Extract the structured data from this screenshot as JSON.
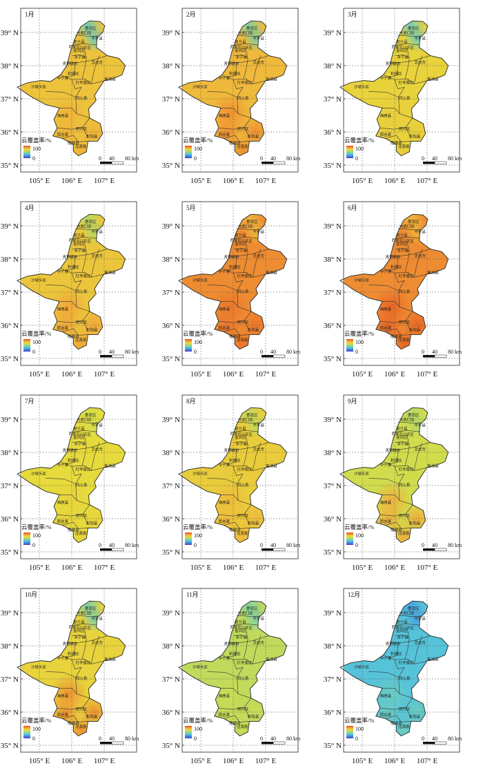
{
  "figure": {
    "legend_title": "云覆盖率/%",
    "legend_max": "100",
    "legend_min": "0",
    "scale_labels": [
      "0",
      "40",
      "80 km"
    ],
    "lat_ticks": [
      "39° N",
      "38° N",
      "37° N",
      "36° N",
      "35° N"
    ],
    "lon_ticks": [
      "105° E",
      "106° E",
      "107° E"
    ],
    "colorscale": [
      "#4b3cc8",
      "#3f8ee0",
      "#58c8d8",
      "#9ed77a",
      "#e5de3c",
      "#f3a73a",
      "#e2461c"
    ],
    "counties": [
      "惠农区",
      "大武口区",
      "平罗县",
      "贺兰县",
      "兴庆区",
      "金凤区",
      "西夏区",
      "永宁县",
      "灵武市",
      "青铜峡市",
      "利通区",
      "中宁县",
      "沙坡头区",
      "红寺堡区",
      "盐池县",
      "同心县",
      "海原县",
      "原州区",
      "西吉县",
      "彭阳县",
      "隆德县",
      "泾源县"
    ]
  },
  "panels": [
    {
      "month": "1月",
      "level": 75,
      "north_level": 38,
      "south_level": 80
    },
    {
      "month": "2月",
      "level": 78,
      "north_level": 42,
      "south_level": 88
    },
    {
      "month": "3月",
      "level": 70,
      "north_level": 38,
      "south_level": 72
    },
    {
      "month": "4月",
      "level": 74,
      "north_level": 55,
      "south_level": 84
    },
    {
      "month": "5月",
      "level": 88,
      "north_level": 78,
      "south_level": 92
    },
    {
      "month": "6月",
      "level": 88,
      "north_level": 78,
      "south_level": 95
    },
    {
      "month": "7月",
      "level": 68,
      "north_level": 62,
      "south_level": 70
    },
    {
      "month": "8月",
      "level": 72,
      "north_level": 58,
      "south_level": 78
    },
    {
      "month": "9月",
      "level": 62,
      "north_level": 55,
      "south_level": 82
    },
    {
      "month": "10月",
      "level": 70,
      "north_level": 40,
      "south_level": 88
    },
    {
      "month": "11月",
      "level": 58,
      "north_level": 42,
      "south_level": 60
    },
    {
      "month": "12月",
      "level": 32,
      "north_level": 22,
      "south_level": 38
    }
  ]
}
